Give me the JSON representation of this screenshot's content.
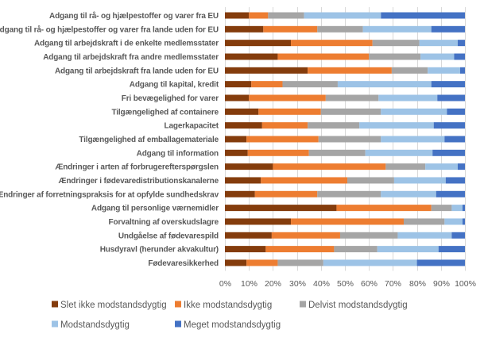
{
  "chart_data": {
    "type": "bar",
    "orientation": "horizontal",
    "stacked": "100-percent",
    "title": "",
    "xlabel": "",
    "ylabel": "",
    "xlim": [
      0,
      100
    ],
    "x_ticks": [
      "0%",
      "10%",
      "20%",
      "30%",
      "40%",
      "50%",
      "60%",
      "70%",
      "80%",
      "90%",
      "100%"
    ],
    "grid": true,
    "legend_position": "bottom",
    "categories": [
      "Adgang til rå- og hjælpestoffer og varer fra EU",
      "Adgang til rå- og hjælpestoffer og varer fra lande uden for EU",
      "Adgang til arbejdskraft i de enkelte medlemsstater",
      "Adgang til arbejdskraft fra andre medlemsstater",
      "Adgang til arbejdskraft fra lande uden for EU",
      "Adgang til kapital, kredit",
      "Fri bevægelighed for varer",
      "Tilgængelighed af containere",
      "Lagerkapacitet",
      "Tilgængelighed af emballagemateriale",
      "Adgang til information",
      "Ændringer i arten af forbrugerefterspørgslen",
      "Ændringer i fødevaredistributionskanalerne",
      "Ændringer af forretningspraksis for at opfylde sundhedskrav",
      "Adgang til personlige værnemidler",
      "Forvaltning af overskudslagre",
      "Undgåelse af fødevarespild",
      "Husdyravl (herunder akvakultur)",
      "Fødevaresikkerhed"
    ],
    "series": [
      {
        "name": "Slet ikke modstandsdygtig",
        "color": "#843c0c",
        "values": [
          10,
          16,
          27.5,
          22,
          34.5,
          11,
          10,
          14,
          15.5,
          9,
          9.5,
          20,
          15,
          12.5,
          46.5,
          27.5,
          19.5,
          17,
          9
        ]
      },
      {
        "name": "Ikke modstandsdygtig",
        "color": "#ed7d31",
        "values": [
          8,
          22.5,
          34,
          38,
          35,
          13,
          32,
          26,
          19,
          30,
          25.5,
          47,
          36,
          26,
          39.5,
          47,
          28.5,
          28.5,
          13
        ]
      },
      {
        "name": "Delvist modstandsdygtig",
        "color": "#a5a5a5",
        "values": [
          15,
          19,
          19.5,
          21.5,
          15,
          23,
          22,
          25,
          21.5,
          26,
          23.5,
          16.5,
          19.5,
          26.5,
          8.5,
          17,
          24,
          18,
          19
        ]
      },
      {
        "name": "Modstandsdygtig",
        "color": "#9dc3e6",
        "values": [
          32,
          28.5,
          16,
          14,
          13.5,
          39,
          24.5,
          27.5,
          31,
          26.5,
          28,
          13.5,
          21.5,
          23,
          4.5,
          7.5,
          22.5,
          25.5,
          39
        ]
      },
      {
        "name": "Meget modstandsdygtig",
        "color": "#4472c4",
        "values": [
          35,
          14,
          3,
          4.5,
          2,
          14,
          11.5,
          7.5,
          13,
          8.5,
          13.5,
          3,
          8,
          12,
          1,
          1,
          5.5,
          11,
          20
        ]
      }
    ]
  }
}
